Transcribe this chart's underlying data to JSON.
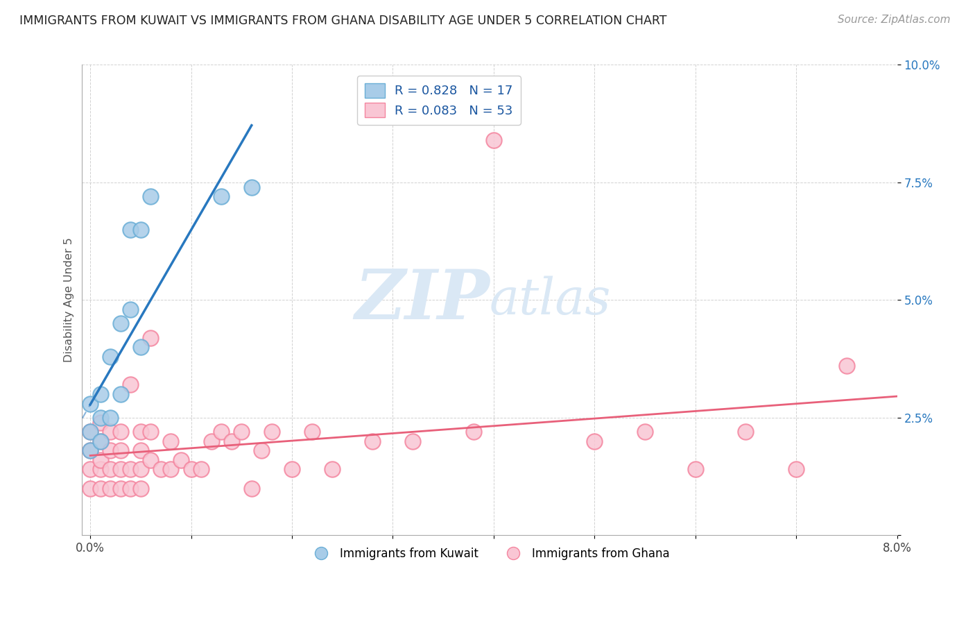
{
  "title": "IMMIGRANTS FROM KUWAIT VS IMMIGRANTS FROM GHANA DISABILITY AGE UNDER 5 CORRELATION CHART",
  "source": "Source: ZipAtlas.com",
  "ylabel": "Disability Age Under 5",
  "xlabel_legend1": "Immigrants from Kuwait",
  "xlabel_legend2": "Immigrants from Ghana",
  "R_kuwait": 0.828,
  "N_kuwait": 17,
  "R_ghana": 0.083,
  "N_ghana": 53,
  "xmin": 0.0,
  "xmax": 0.08,
  "ymin": 0.0,
  "ymax": 0.1,
  "xticks": [
    0.0,
    0.01,
    0.02,
    0.03,
    0.04,
    0.05,
    0.06,
    0.07,
    0.08
  ],
  "xtick_labels": [
    "0.0%",
    "",
    "",
    "",
    "",
    "",
    "",
    "",
    "8.0%"
  ],
  "yticks": [
    0.0,
    0.025,
    0.05,
    0.075,
    0.1
  ],
  "ytick_labels": [
    "",
    "2.5%",
    "5.0%",
    "7.5%",
    "10.0%"
  ],
  "kuwait_color": "#a8cce8",
  "kuwait_edge_color": "#6aaed6",
  "ghana_color": "#f9c6d4",
  "ghana_edge_color": "#f4859f",
  "kuwait_line_color": "#2878bf",
  "ghana_line_color": "#e8607a",
  "watermark_color": "#dae8f5",
  "kuwait_points_x": [
    0.0,
    0.0,
    0.0,
    0.001,
    0.001,
    0.001,
    0.002,
    0.002,
    0.003,
    0.003,
    0.004,
    0.004,
    0.005,
    0.005,
    0.006,
    0.013,
    0.016
  ],
  "kuwait_points_y": [
    0.018,
    0.022,
    0.028,
    0.02,
    0.025,
    0.03,
    0.025,
    0.038,
    0.03,
    0.045,
    0.048,
    0.065,
    0.04,
    0.065,
    0.072,
    0.072,
    0.074
  ],
  "ghana_points_x": [
    0.0,
    0.0,
    0.0,
    0.0,
    0.001,
    0.001,
    0.001,
    0.001,
    0.001,
    0.002,
    0.002,
    0.002,
    0.002,
    0.003,
    0.003,
    0.003,
    0.003,
    0.004,
    0.004,
    0.004,
    0.005,
    0.005,
    0.005,
    0.005,
    0.006,
    0.006,
    0.006,
    0.007,
    0.008,
    0.008,
    0.009,
    0.01,
    0.011,
    0.012,
    0.013,
    0.014,
    0.015,
    0.016,
    0.017,
    0.018,
    0.02,
    0.022,
    0.024,
    0.028,
    0.032,
    0.038,
    0.04,
    0.05,
    0.055,
    0.06,
    0.065,
    0.07,
    0.075
  ],
  "ghana_points_y": [
    0.01,
    0.014,
    0.018,
    0.022,
    0.01,
    0.014,
    0.016,
    0.02,
    0.024,
    0.01,
    0.014,
    0.018,
    0.022,
    0.01,
    0.014,
    0.018,
    0.022,
    0.01,
    0.014,
    0.032,
    0.01,
    0.014,
    0.018,
    0.022,
    0.016,
    0.022,
    0.042,
    0.014,
    0.014,
    0.02,
    0.016,
    0.014,
    0.014,
    0.02,
    0.022,
    0.02,
    0.022,
    0.01,
    0.018,
    0.022,
    0.014,
    0.022,
    0.014,
    0.02,
    0.02,
    0.022,
    0.084,
    0.02,
    0.022,
    0.014,
    0.022,
    0.014,
    0.036
  ]
}
